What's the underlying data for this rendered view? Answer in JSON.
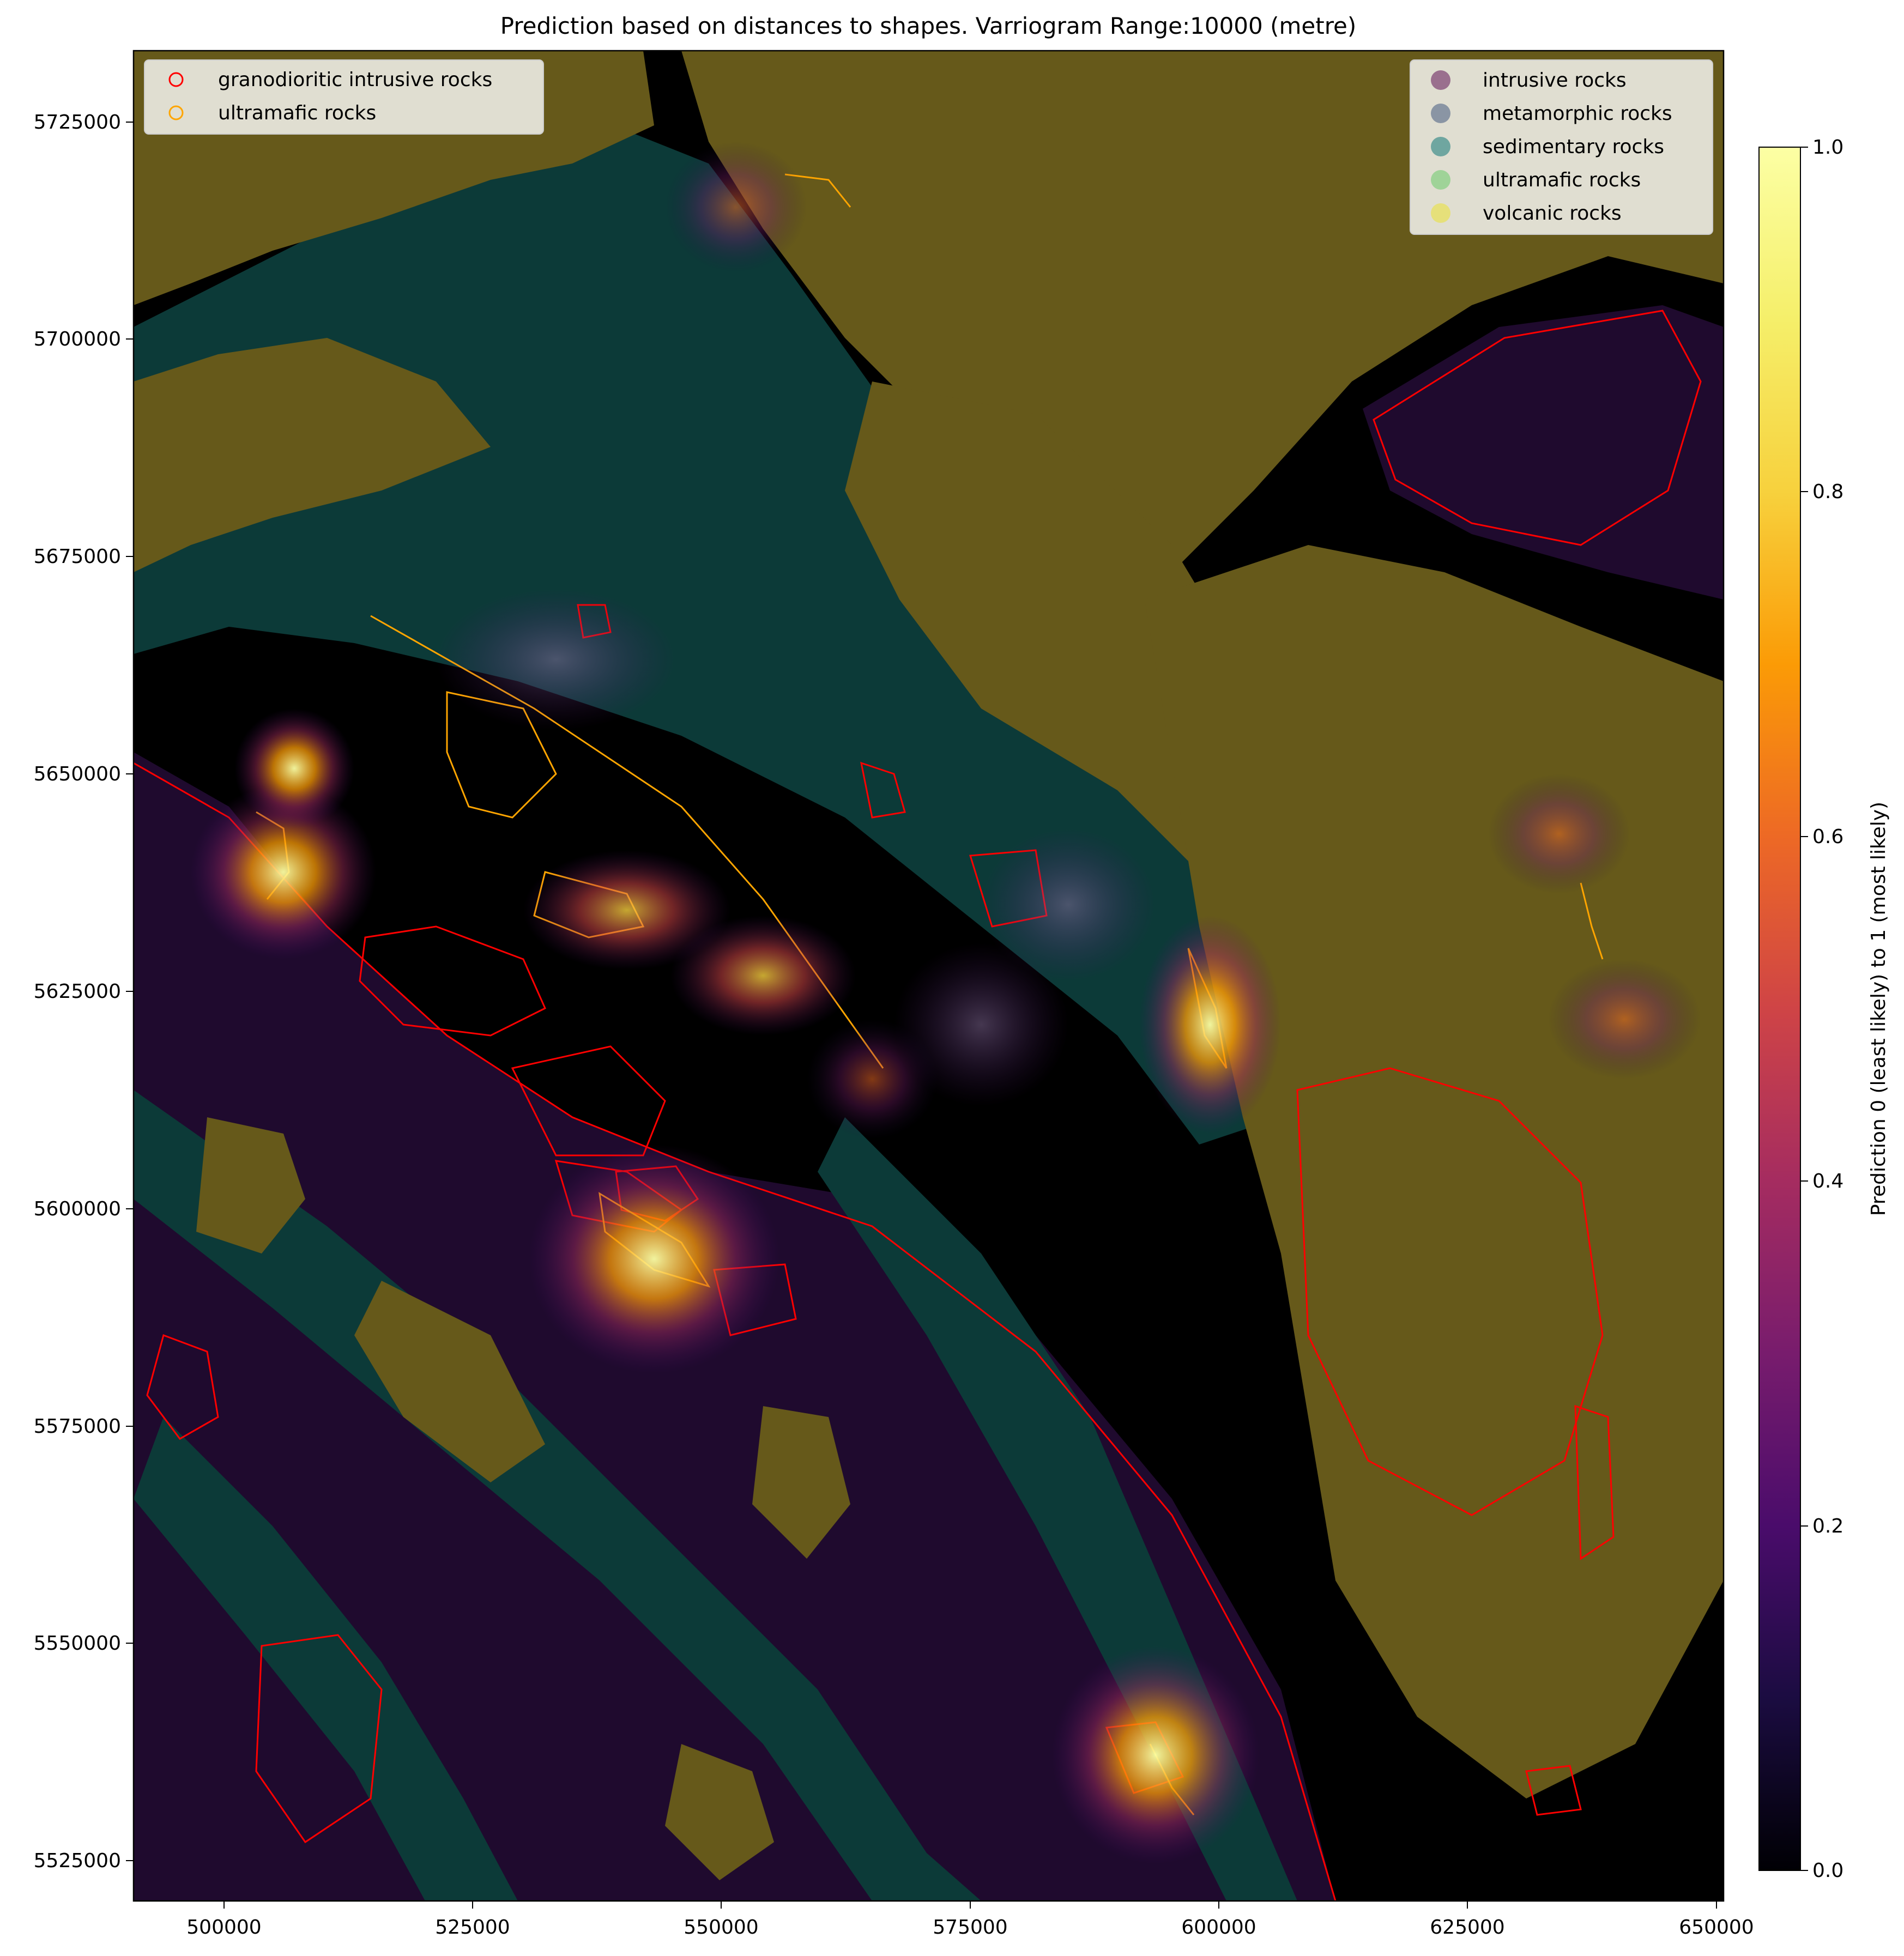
{
  "title": "Prediction based on distances to shapes. Varriogram Range:10000 (metre)",
  "x_ticks": [
    "500000",
    "525000",
    "550000",
    "575000",
    "600000",
    "625000",
    "650000"
  ],
  "y_ticks": [
    "5725000",
    "5700000",
    "5675000",
    "5650000",
    "5625000",
    "5600000",
    "5575000",
    "5550000",
    "5525000"
  ],
  "legend_left": [
    {
      "label": "granodioritic intrusive rocks",
      "color": "#ff0000"
    },
    {
      "label": "ultramafic rocks",
      "color": "#ffa500"
    }
  ],
  "legend_right": [
    {
      "label": "intrusive rocks",
      "color": "#9a6f8e"
    },
    {
      "label": "metamorphic rocks",
      "color": "#8a95a4"
    },
    {
      "label": "sedimentary rocks",
      "color": "#6fa6a0"
    },
    {
      "label": "ultramafic rocks",
      "color": "#9fd398"
    },
    {
      "label": "volcanic rocks",
      "color": "#e6e07a"
    }
  ],
  "colorbar": {
    "label": "Prediction 0 (least likely) to 1 (most likely)",
    "ticks": [
      "0.0",
      "0.2",
      "0.4",
      "0.6",
      "0.8",
      "1.0"
    ],
    "colormap": "inferno"
  },
  "map_colors": {
    "background": "#000000",
    "intrusive": "#1f0a2e",
    "volcanic": "#66591a",
    "sedimentary": "#0c3a38"
  }
}
